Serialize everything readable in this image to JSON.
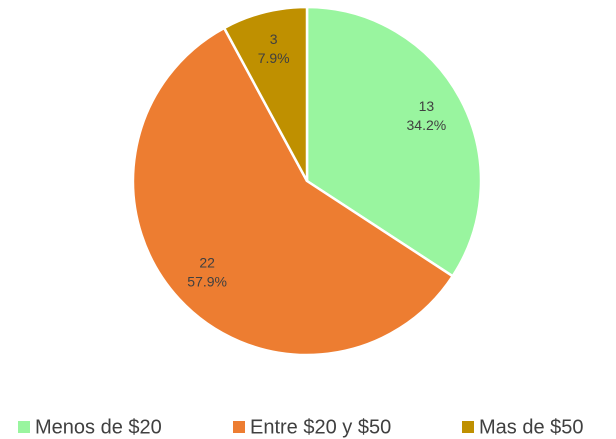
{
  "chart_data": {
    "type": "pie",
    "categories": [
      "Menos de $20",
      "Entre $20 y $50",
      "Mas de $50"
    ],
    "values": [
      13,
      22,
      3
    ],
    "percent_labels": [
      "34.2%",
      "57.9%",
      "7.9%"
    ],
    "colors": [
      "#99f59f",
      "#ed7d31",
      "#bf9000"
    ],
    "legend": "bottom"
  }
}
